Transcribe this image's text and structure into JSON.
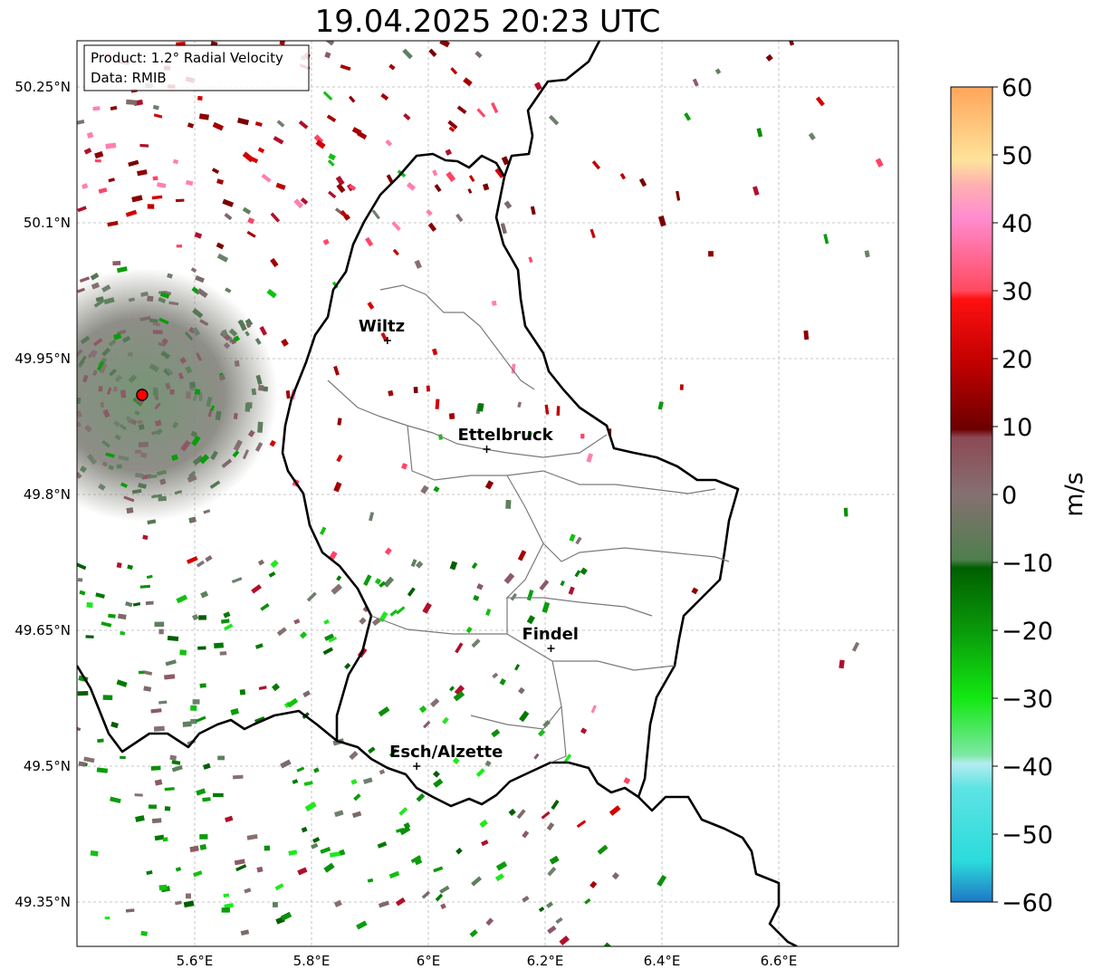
{
  "title": "19.04.2025 20:23 UTC",
  "info_box": {
    "line1": "Product: 1.2° Radial Velocity",
    "line2": "Data: RMIB"
  },
  "colorbar": {
    "label": "m/s",
    "min": -60,
    "max": 60,
    "ticks": [
      "60",
      "50",
      "40",
      "30",
      "20",
      "10",
      "0",
      "−10",
      "−20",
      "−30",
      "−40",
      "−50",
      "−60"
    ],
    "tick_values": [
      60,
      50,
      40,
      30,
      20,
      10,
      0,
      -10,
      -20,
      -30,
      -40,
      -50,
      -60
    ]
  },
  "axes": {
    "lon_ticks": [
      "5.6°E",
      "5.8°E",
      "6°E",
      "6.2°E",
      "6.4°E",
      "6.6°E"
    ],
    "lat_ticks": [
      "50.25°N",
      "50.1°N",
      "49.95°N",
      "49.8°N",
      "49.65°N",
      "49.5°N",
      "49.35°N"
    ]
  },
  "cities": [
    {
      "name": "Wiltz",
      "lon": 5.93,
      "lat": 49.97
    },
    {
      "name": "Ettelbruck",
      "lon": 6.1,
      "lat": 49.85
    },
    {
      "name": "Findel",
      "lon": 6.21,
      "lat": 49.63
    },
    {
      "name": "Esch/Alzette",
      "lon": 5.98,
      "lat": 49.5
    }
  ],
  "radar_site": {
    "lon": 5.51,
    "lat": 49.91,
    "color": "#ff0000"
  },
  "colors": {
    "velocity_colors": [
      "#1f77c4",
      "#2bdbdc",
      "#b4ecf0",
      "#7fe8a6",
      "#12e812",
      "#0a9c0a",
      "#005f00",
      "#567f56",
      "#857070",
      "#8c4a55",
      "#6b0000",
      "#c00000",
      "#ff1a1a",
      "#ff5577",
      "#ff8ccf",
      "#ffe39a",
      "#ffa55a"
    ]
  }
}
